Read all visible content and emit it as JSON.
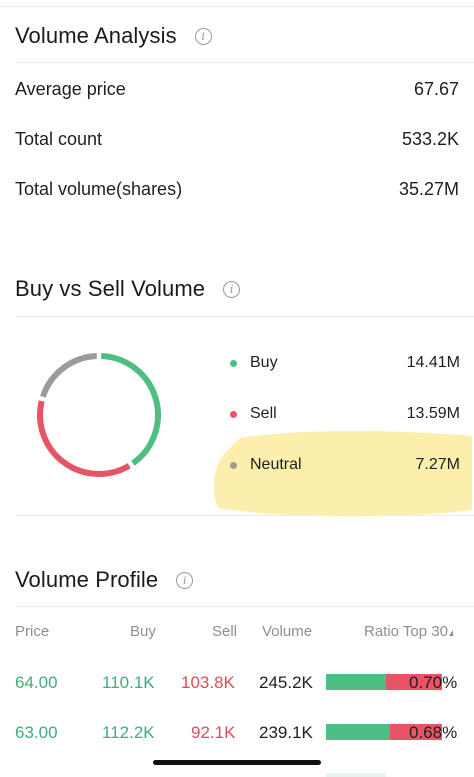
{
  "volume_analysis": {
    "title": "Volume Analysis",
    "info_icon": "info-icon",
    "rows": [
      {
        "label": "Average price",
        "value": "67.67"
      },
      {
        "label": "Total count",
        "value": "533.2K"
      },
      {
        "label": "Total volume(shares)",
        "value": "35.27M"
      }
    ]
  },
  "buy_sell": {
    "title": "Buy vs Sell Volume",
    "info_icon": "info-icon",
    "legend": [
      {
        "label": "Buy",
        "value": "14.41M",
        "color": "#4fbe84"
      },
      {
        "label": "Sell",
        "value": "13.59M",
        "color": "#e85466"
      },
      {
        "label": "Neutral",
        "value": "7.27M",
        "color": "#9b9b9b"
      }
    ],
    "highlight_color": "#fbe88a"
  },
  "chart_data": {
    "type": "pie",
    "categories": [
      "Buy",
      "Sell",
      "Neutral"
    ],
    "values": [
      14.41,
      13.59,
      7.27
    ],
    "colors": [
      "#4fbe84",
      "#e85466",
      "#9b9b9b"
    ],
    "donut": true
  },
  "volume_profile": {
    "title": "Volume Profile",
    "info_icon": "info-icon",
    "columns": {
      "price": "Price",
      "buy": "Buy",
      "sell": "Sell",
      "volume": "Volume",
      "ratio": "Ratio Top 30"
    },
    "rows": [
      {
        "price": "64.00",
        "buy": "110.1K",
        "sell": "103.8K",
        "volume": "245.2K",
        "ratio": "0.70%",
        "buy_share": 0.515
      },
      {
        "price": "63.00",
        "buy": "112.2K",
        "sell": "92.1K",
        "volume": "239.1K",
        "ratio": "0.68%",
        "buy_share": 0.55
      }
    ]
  }
}
